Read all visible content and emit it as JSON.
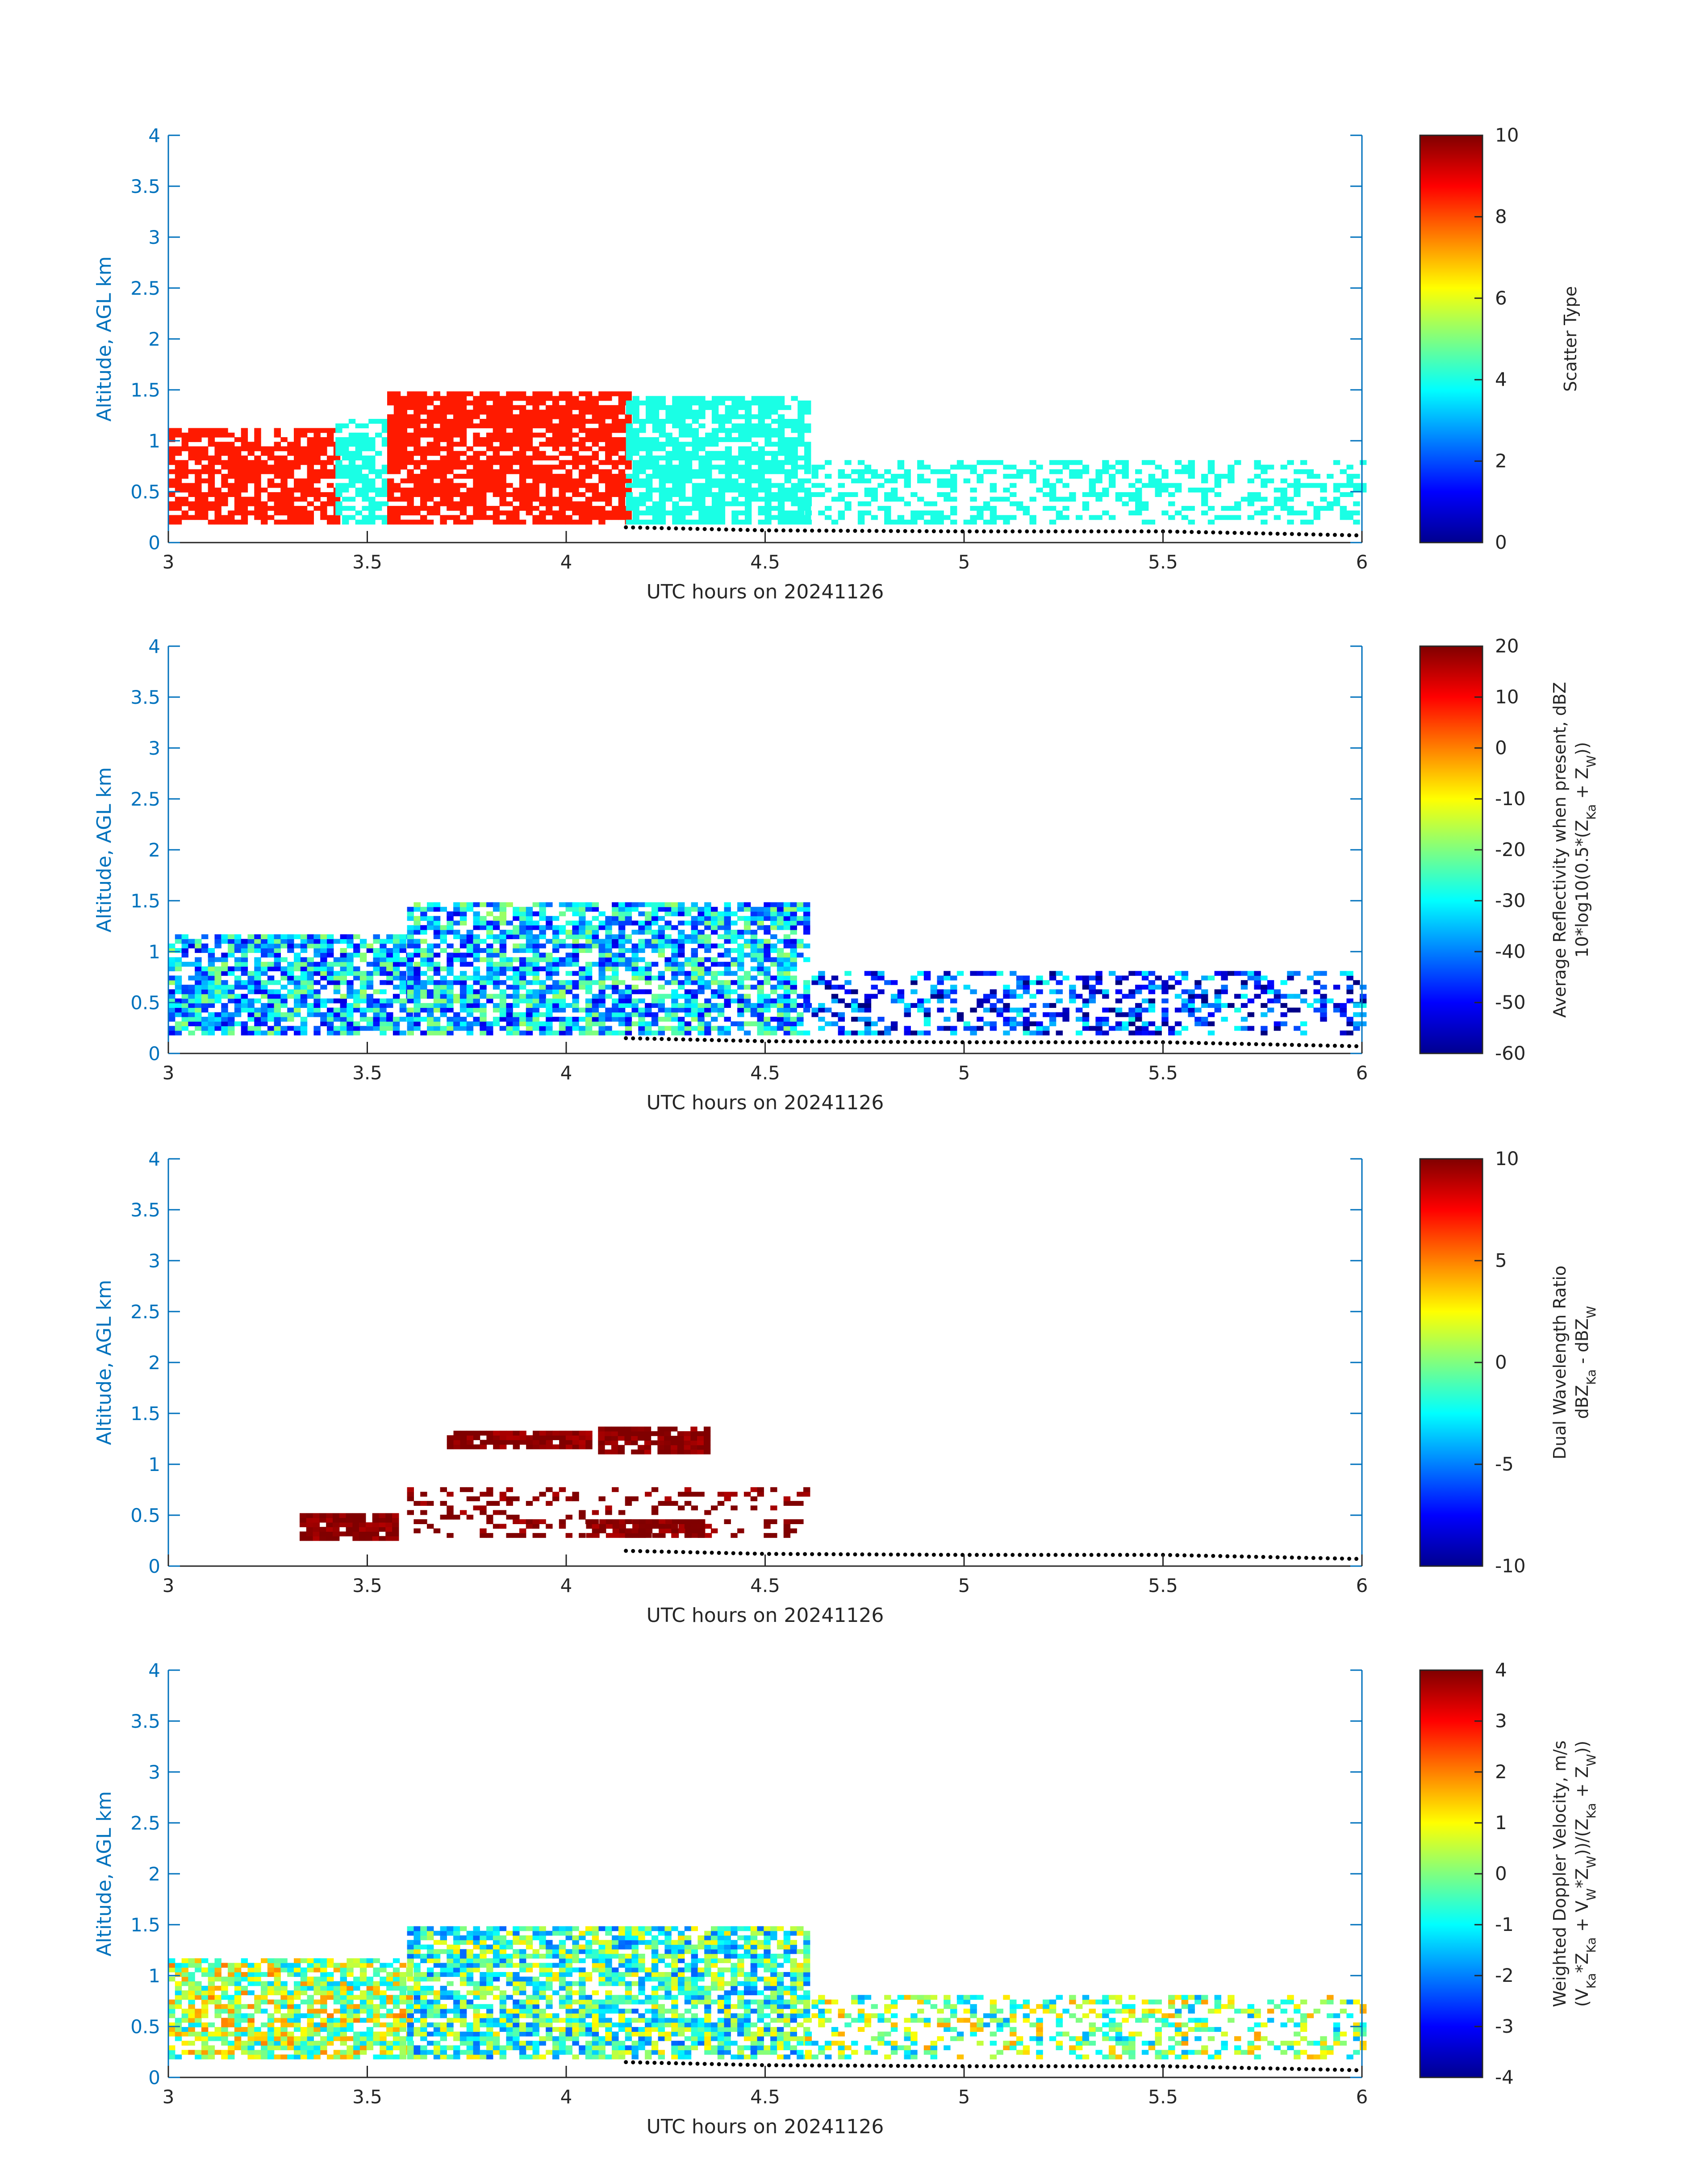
{
  "chart_data": [
    {
      "type": "heatmap",
      "xlabel": "UTC hours on 20241126",
      "ylabel": "Altitude, AGL km",
      "xlim": [
        3,
        6
      ],
      "ylim": [
        0,
        4
      ],
      "xticks": [
        "3",
        "3.5",
        "4",
        "4.5",
        "5",
        "5.5",
        "6"
      ],
      "yticks": [
        "0",
        "0.5",
        "1",
        "1.5",
        "2",
        "2.5",
        "3",
        "3.5",
        "4"
      ],
      "colorbar": {
        "label_lines": [
          "Scatter Type"
        ],
        "range": [
          0,
          10
        ],
        "ticks": [
          "0",
          "2",
          "4",
          "6",
          "8",
          "10"
        ]
      },
      "regions": [
        {
          "x": [
            3.0,
            3.42
          ],
          "y": [
            0.18,
            1.12
          ],
          "value": 8.5,
          "density": 0.72
        },
        {
          "x": [
            3.42,
            3.55
          ],
          "y": [
            0.18,
            1.2
          ],
          "value": 4.0,
          "density": 0.65
        },
        {
          "x": [
            3.55,
            4.15
          ],
          "y": [
            0.18,
            1.45
          ],
          "value": 8.5,
          "density": 0.78
        },
        {
          "x": [
            4.15,
            4.6
          ],
          "y": [
            0.18,
            1.4
          ],
          "value": 4.0,
          "density": 0.75
        },
        {
          "x": [
            4.6,
            6.0
          ],
          "y": [
            0.18,
            0.8
          ],
          "value": 4.0,
          "density": 0.35
        }
      ],
      "ground_line": {
        "x": [
          4.15,
          4.5,
          5.0,
          5.5,
          6.0
        ],
        "y": [
          0.15,
          0.12,
          0.11,
          0.11,
          0.07
        ]
      }
    },
    {
      "type": "heatmap",
      "xlabel": "UTC hours on 20241126",
      "ylabel": "Altitude, AGL km",
      "xlim": [
        3,
        6
      ],
      "ylim": [
        0,
        4
      ],
      "xticks": [
        "3",
        "3.5",
        "4",
        "4.5",
        "5",
        "5.5",
        "6"
      ],
      "yticks": [
        "0",
        "0.5",
        "1",
        "1.5",
        "2",
        "2.5",
        "3",
        "3.5",
        "4"
      ],
      "colorbar": {
        "label_lines": [
          "Average Reflectivity when present, dBZ",
          "10*log10(0.5*(Z",
          "Ka",
          " + Z",
          "W",
          "))"
        ],
        "range": [
          -60,
          20
        ],
        "ticks": [
          "-60",
          "-50",
          "-40",
          "-30",
          "-20",
          "-10",
          "0",
          "10",
          "20"
        ]
      },
      "regions": [
        {
          "x": [
            3.0,
            3.6
          ],
          "y": [
            0.18,
            1.15
          ],
          "value": -35,
          "density": 0.75
        },
        {
          "x": [
            3.6,
            4.6
          ],
          "y": [
            0.18,
            1.45
          ],
          "value": -35,
          "density": 0.72
        },
        {
          "x": [
            4.6,
            6.0
          ],
          "y": [
            0.18,
            0.8
          ],
          "value": -45,
          "density": 0.4
        }
      ],
      "ground_line": {
        "x": [
          4.15,
          4.5,
          5.0,
          5.5,
          6.0
        ],
        "y": [
          0.15,
          0.12,
          0.11,
          0.11,
          0.07
        ]
      }
    },
    {
      "type": "heatmap",
      "xlabel": "UTC hours on 20241126",
      "ylabel": "Altitude, AGL km",
      "xlim": [
        3,
        6
      ],
      "ylim": [
        0,
        4
      ],
      "xticks": [
        "3",
        "3.5",
        "4",
        "4.5",
        "5",
        "5.5",
        "6"
      ],
      "yticks": [
        "0",
        "0.5",
        "1",
        "1.5",
        "2",
        "2.5",
        "3",
        "3.5",
        "4"
      ],
      "colorbar": {
        "label_lines": [
          "Dual Wavelength Ratio",
          "dBZ",
          "Ka",
          " - dBZ",
          "W"
        ],
        "range": [
          -10,
          10
        ],
        "ticks": [
          "-10",
          "-5",
          "0",
          "5",
          "10"
        ]
      },
      "regions": [
        {
          "x": [
            3.33,
            3.57
          ],
          "y": [
            0.25,
            0.5
          ],
          "value": 10,
          "density": 0.9
        },
        {
          "x": [
            3.7,
            4.05
          ],
          "y": [
            1.15,
            1.3
          ],
          "value": 10,
          "density": 0.85
        },
        {
          "x": [
            4.08,
            4.35
          ],
          "y": [
            1.1,
            1.35
          ],
          "value": 10,
          "density": 0.85
        },
        {
          "x": [
            4.05,
            4.35
          ],
          "y": [
            0.28,
            0.42
          ],
          "value": 10,
          "density": 0.8
        },
        {
          "x": [
            3.6,
            4.6
          ],
          "y": [
            0.28,
            0.75
          ],
          "value": 10,
          "density": 0.25
        }
      ],
      "ground_line": {
        "x": [
          4.15,
          4.5,
          5.0,
          5.5,
          6.0
        ],
        "y": [
          0.15,
          0.12,
          0.11,
          0.11,
          0.07
        ]
      }
    },
    {
      "type": "heatmap",
      "xlabel": "UTC hours on 20241126",
      "ylabel": "Altitude, AGL km",
      "xlim": [
        3,
        6
      ],
      "ylim": [
        0,
        4
      ],
      "xticks": [
        "3",
        "3.5",
        "4",
        "4.5",
        "5",
        "5.5",
        "6"
      ],
      "yticks": [
        "0",
        "0.5",
        "1",
        "1.5",
        "2",
        "2.5",
        "3",
        "3.5",
        "4"
      ],
      "colorbar": {
        "label_lines": [
          "Weighted Doppler Velocity, m/s",
          "(V",
          "Ka",
          "*Z",
          "Ka",
          " + V",
          "W",
          "*Z",
          "W",
          "))/(Z",
          "Ka",
          " + Z",
          "W",
          "))"
        ],
        "range": [
          -4,
          4
        ],
        "ticks": [
          "-4",
          "-3",
          "-2",
          "-1",
          "0",
          "1",
          "2",
          "3",
          "4"
        ]
      },
      "regions": [
        {
          "x": [
            3.0,
            3.6
          ],
          "y": [
            0.18,
            1.15
          ],
          "value": 0.3,
          "density": 0.75
        },
        {
          "x": [
            3.6,
            4.6
          ],
          "y": [
            0.18,
            1.45
          ],
          "value": -0.5,
          "density": 0.75
        },
        {
          "x": [
            4.6,
            6.0
          ],
          "y": [
            0.18,
            0.8
          ],
          "value": 0.0,
          "density": 0.4
        }
      ],
      "ground_line": {
        "x": [
          4.15,
          4.5,
          5.0,
          5.5,
          6.0
        ],
        "y": [
          0.15,
          0.12,
          0.11,
          0.11,
          0.07
        ]
      }
    }
  ]
}
